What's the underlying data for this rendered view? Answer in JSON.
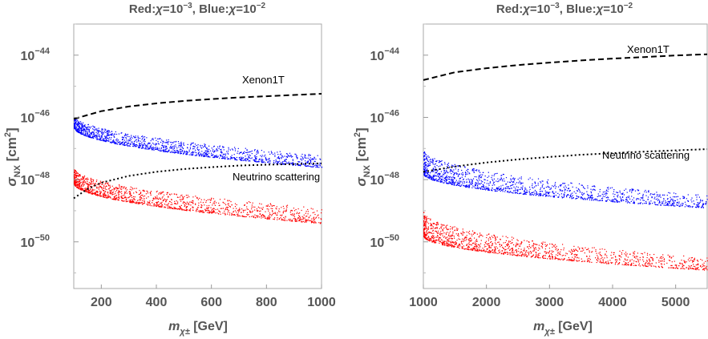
{
  "chart_data": [
    {
      "type": "scatter",
      "title_prefix_red": "Red:",
      "title_prefix_blue": ", Blue:",
      "title_chi": "χ",
      "title_eq": "=10",
      "title_exp_red": "−3",
      "title_exp_blue": "−2",
      "xlabel_m": "m",
      "xlabel_sub": "χ±",
      "xlabel_unit": " [GeV]",
      "ylabel_sigma": "σ",
      "ylabel_sub": "NX",
      "ylabel_unit": " [cm",
      "ylabel_sup": "2",
      "ylabel_close": "]",
      "x_scale": "linear",
      "y_scale": "log",
      "xlim": [
        100,
        1000
      ],
      "ylim_log10": [
        -51.5,
        -43.0
      ],
      "xticks": [
        200,
        400,
        600,
        800,
        1000
      ],
      "yticks_exp": [
        "−44",
        "−46",
        "−48",
        "−50"
      ],
      "ytick_base": "10",
      "grid": false,
      "series": [
        {
          "name": "Xenon1T",
          "style": "dashed",
          "color": "#000000",
          "x": [
            100,
            200,
            300,
            400,
            500,
            600,
            700,
            800,
            900,
            1000
          ],
          "log10_y": [
            -46.05,
            -45.8,
            -45.65,
            -45.55,
            -45.47,
            -45.41,
            -45.36,
            -45.32,
            -45.28,
            -45.24
          ]
        },
        {
          "name": "Neutrino scattering",
          "style": "dotted",
          "color": "#000000",
          "x": [
            100,
            150,
            200,
            300,
            400,
            500,
            600,
            700,
            800,
            900,
            1000
          ],
          "log10_y": [
            -48.6,
            -48.3,
            -48.1,
            -47.88,
            -47.75,
            -47.66,
            -47.6,
            -47.55,
            -47.52,
            -47.5,
            -47.48
          ]
        },
        {
          "color": "#0000ff",
          "points": "scatter",
          "x_range": [
            100,
            1000
          ],
          "log10_y_upper": [
            -45.9,
            -47.2
          ],
          "log10_y_lower": [
            -46.3,
            -47.6
          ]
        },
        {
          "color": "#ff0000",
          "points": "scatter",
          "x_range": [
            100,
            1000
          ],
          "log10_y_upper": [
            -47.6,
            -48.9
          ],
          "log10_y_lower": [
            -48.1,
            -49.4
          ]
        }
      ],
      "annotations": [
        "Xenon1T",
        "Neutrino scattering"
      ]
    },
    {
      "type": "scatter",
      "title_prefix_red": "Red:",
      "title_prefix_blue": ", Blue:",
      "title_chi": "χ",
      "title_eq": "=10",
      "title_exp_red": "−3",
      "title_exp_blue": "−2",
      "xlabel_m": "m",
      "xlabel_sub": "χ±",
      "xlabel_unit": " [GeV]",
      "ylabel_sigma": "σ",
      "ylabel_sub": "NX",
      "ylabel_unit": " [cm",
      "ylabel_sup": "2",
      "ylabel_close": "]",
      "x_scale": "linear",
      "y_scale": "log",
      "xlim": [
        1000,
        5500
      ],
      "ylim_log10": [
        -51.5,
        -43.0
      ],
      "xticks": [
        1000,
        2000,
        3000,
        4000,
        5000
      ],
      "yticks_exp": [
        "−44",
        "−46",
        "−48",
        "−50"
      ],
      "ytick_base": "10",
      "grid": false,
      "series": [
        {
          "name": "Xenon1T",
          "style": "dashed",
          "color": "#000000",
          "x": [
            1000,
            1500,
            2000,
            2500,
            3000,
            3500,
            4000,
            4500,
            5000,
            5500
          ],
          "log10_y": [
            -44.8,
            -44.55,
            -44.42,
            -44.32,
            -44.24,
            -44.17,
            -44.11,
            -44.06,
            -44.01,
            -43.97
          ]
        },
        {
          "name": "Neutrino scattering",
          "style": "dotted",
          "color": "#000000",
          "x": [
            1000,
            1500,
            2000,
            2500,
            3000,
            3500,
            4000,
            4500,
            5000,
            5500
          ],
          "log10_y": [
            -47.75,
            -47.58,
            -47.45,
            -47.35,
            -47.27,
            -47.2,
            -47.15,
            -47.1,
            -47.06,
            -47.02
          ]
        },
        {
          "color": "#0000ff",
          "points": "scatter",
          "x_range": [
            1000,
            5500
          ],
          "log10_y_upper": [
            -47.0,
            -48.5
          ],
          "log10_y_lower": [
            -47.8,
            -48.9
          ]
        },
        {
          "color": "#ff0000",
          "points": "scatter",
          "x_range": [
            1000,
            5500
          ],
          "log10_y_upper": [
            -49.0,
            -50.5
          ],
          "log10_y_lower": [
            -49.8,
            -50.9
          ]
        }
      ],
      "annotations": [
        "Xenon1T",
        "Neutrino scattering"
      ]
    }
  ]
}
